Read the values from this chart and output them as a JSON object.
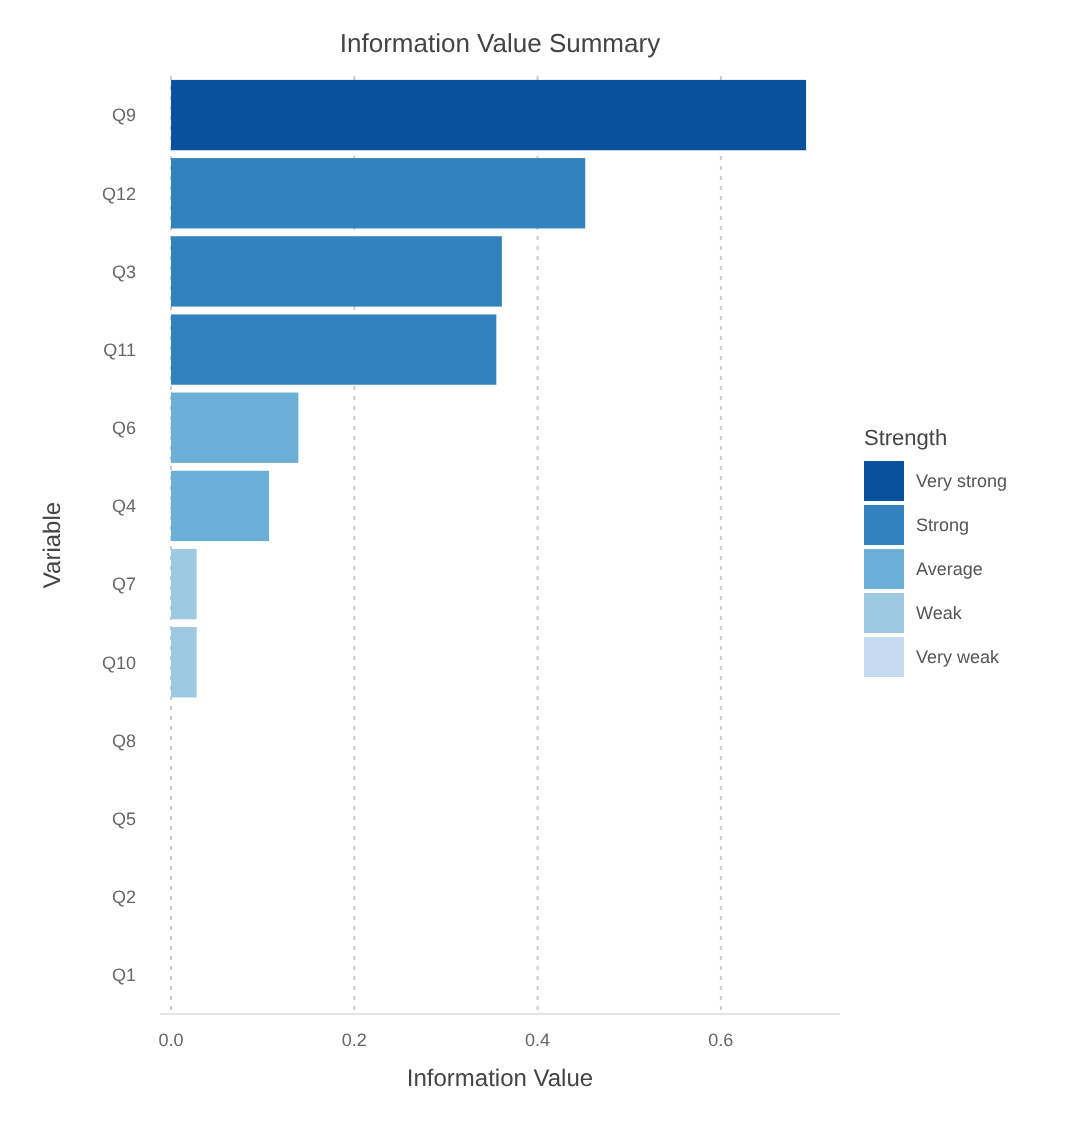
{
  "chart_data": {
    "type": "bar",
    "orientation": "horizontal",
    "title": "Information Value Summary",
    "xlabel": "Information Value",
    "ylabel": "Variable",
    "legend_title": "Strength",
    "legend": "right",
    "grid": "x",
    "categories": [
      "Q9",
      "Q12",
      "Q3",
      "Q11",
      "Q6",
      "Q4",
      "Q7",
      "Q10",
      "Q8",
      "Q5",
      "Q2",
      "Q1"
    ],
    "series": [
      {
        "name": "Very strong",
        "color": "#08519c",
        "values": [
          0.693,
          null,
          null,
          null,
          null,
          null,
          null,
          null,
          null,
          null,
          null,
          null
        ]
      },
      {
        "name": "Strong",
        "color": "#3182bd",
        "values": [
          null,
          0.452,
          0.361,
          0.355,
          null,
          null,
          null,
          null,
          null,
          null,
          null,
          null
        ]
      },
      {
        "name": "Average",
        "color": "#6baed6",
        "values": [
          null,
          null,
          null,
          null,
          0.139,
          0.107,
          null,
          null,
          null,
          null,
          null,
          null
        ]
      },
      {
        "name": "Weak",
        "color": "#9ecae1",
        "values": [
          null,
          null,
          null,
          null,
          null,
          null,
          0.028,
          0.028,
          null,
          null,
          null,
          null
        ]
      },
      {
        "name": "Very weak",
        "color": "#c6dbef",
        "values": [
          null,
          null,
          null,
          null,
          null,
          null,
          null,
          null,
          0,
          0,
          0,
          0
        ]
      }
    ],
    "xlim": [
      -0.012,
      0.73
    ],
    "xticks": [
      {
        "value": 0,
        "label": "0.0"
      },
      0.2,
      0.4,
      0.6
    ]
  }
}
